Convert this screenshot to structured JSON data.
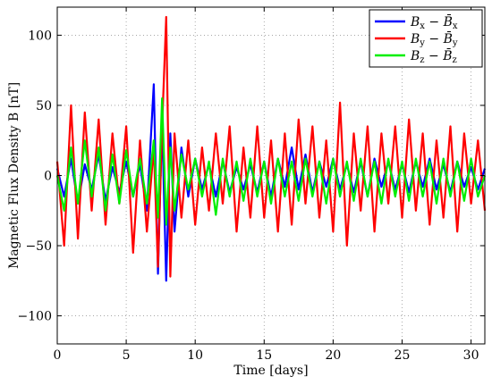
{
  "chart_data": {
    "type": "line",
    "title": "",
    "xlabel": "Time [days]",
    "ylabel": "Magnetic Flux Density B [nT]",
    "xlim": [
      0,
      31
    ],
    "ylim": [
      -120,
      120
    ],
    "xticks": [
      0,
      5,
      10,
      15,
      20,
      25,
      30
    ],
    "yticks": [
      -100,
      -50,
      0,
      50,
      100
    ],
    "xtick_labels": [
      "0",
      "5",
      "10",
      "15",
      "20",
      "25",
      "30"
    ],
    "ytick_labels": [
      "−100",
      "−50",
      "0",
      "50",
      "100"
    ],
    "grid": true,
    "legend_position": "top-right",
    "x": [
      0.0,
      0.5,
      1.0,
      1.5,
      2.0,
      2.5,
      3.0,
      3.5,
      4.0,
      4.5,
      5.0,
      5.5,
      6.0,
      6.5,
      7.0,
      7.3,
      7.6,
      7.9,
      8.2,
      8.5,
      9.0,
      9.5,
      10.0,
      10.5,
      11.0,
      11.5,
      12.0,
      12.5,
      13.0,
      13.5,
      14.0,
      14.5,
      15.0,
      15.5,
      16.0,
      16.5,
      17.0,
      17.5,
      18.0,
      18.5,
      19.0,
      19.5,
      20.0,
      20.5,
      21.0,
      21.5,
      22.0,
      22.5,
      23.0,
      23.5,
      24.0,
      24.5,
      25.0,
      25.5,
      26.0,
      26.5,
      27.0,
      27.5,
      28.0,
      28.5,
      29.0,
      29.5,
      30.0,
      30.5,
      31.0
    ],
    "series": [
      {
        "name": "Bx − B̄x",
        "legend_main": "B",
        "legend_sub": "x",
        "legend_minus": "−",
        "legend_bar": "B̄",
        "legend_bar_sub": "x",
        "color": "#0000ff",
        "values": [
          5,
          -15,
          12,
          -20,
          8,
          -10,
          15,
          -18,
          6,
          -12,
          10,
          -15,
          8,
          -25,
          65,
          -70,
          40,
          -75,
          30,
          -40,
          20,
          -15,
          12,
          -10,
          8,
          -15,
          10,
          -12,
          6,
          -10,
          8,
          -12,
          10,
          -15,
          12,
          -8,
          20,
          -10,
          15,
          -12,
          10,
          -8,
          12,
          -10,
          8,
          -12,
          10,
          -15,
          12,
          -8,
          10,
          -10,
          8,
          -12,
          10,
          -8,
          12,
          -10,
          8,
          -12,
          10,
          -8,
          6,
          -10,
          5
        ]
      },
      {
        "name": "By − B̄y",
        "legend_main": "B",
        "legend_sub": "y",
        "legend_minus": "−",
        "legend_bar": "B̄",
        "legend_bar_sub": "y",
        "color": "#ff0000",
        "values": [
          10,
          -50,
          50,
          -45,
          45,
          -25,
          40,
          -35,
          30,
          -20,
          35,
          -55,
          25,
          -40,
          20,
          -65,
          35,
          113,
          -72,
          30,
          -30,
          25,
          -35,
          20,
          -25,
          30,
          -20,
          35,
          -40,
          20,
          -30,
          35,
          -30,
          25,
          -40,
          30,
          -35,
          40,
          -20,
          35,
          -30,
          25,
          -40,
          52,
          -50,
          30,
          -25,
          35,
          -40,
          30,
          -20,
          35,
          -30,
          40,
          -25,
          30,
          -35,
          25,
          -30,
          35,
          -40,
          30,
          -20,
          25,
          -25
        ]
      },
      {
        "name": "Bz − B̄z",
        "legend_main": "B",
        "legend_sub": "z",
        "legend_minus": "−",
        "legend_bar": "B̄",
        "legend_bar_sub": "z",
        "color": "#00ee00",
        "values": [
          0,
          -25,
          20,
          -20,
          25,
          -15,
          20,
          -25,
          15,
          -20,
          18,
          -15,
          12,
          -20,
          25,
          -30,
          55,
          -35,
          20,
          -25,
          15,
          -10,
          12,
          -15,
          10,
          -28,
          12,
          -15,
          10,
          -18,
          12,
          -15,
          10,
          -20,
          12,
          -15,
          10,
          -18,
          12,
          -15,
          10,
          -20,
          12,
          -15,
          10,
          -18,
          12,
          -15,
          10,
          -20,
          12,
          -15,
          10,
          -18,
          12,
          -15,
          10,
          -20,
          12,
          -15,
          10,
          -18,
          12,
          -15,
          0
        ]
      }
    ]
  }
}
